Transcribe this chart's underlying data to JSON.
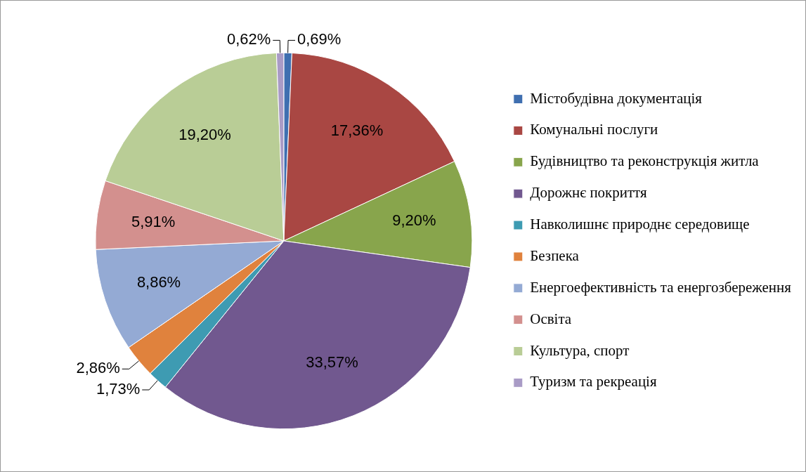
{
  "chart_data": {
    "type": "pie",
    "categories": [
      "Містобудівна документація",
      "Комунальні послуги",
      "Будівництво та реконструкція житла",
      "Дорожнє покриття",
      "Навколишнє природнє середовище",
      "Безпека",
      "Енергоефективність та енергозбереження",
      "Освіта",
      "Культура, спорт",
      "Туризм та рекреація"
    ],
    "values": [
      0.69,
      17.36,
      9.2,
      33.57,
      1.73,
      2.86,
      8.86,
      5.91,
      19.2,
      0.62
    ],
    "value_labels": [
      "0,69%",
      "17,36%",
      "9,20%",
      "33,57%",
      "1,73%",
      "2,86%",
      "8,86%",
      "5,91%",
      "19,20%",
      "0,62%"
    ],
    "colors": [
      "#3f6fb0",
      "#a94743",
      "#88a54c",
      "#71588f",
      "#3e9bb2",
      "#e0823d",
      "#94aad4",
      "#d3908e",
      "#b9cd96",
      "#a99bc6"
    ],
    "legend": "right"
  }
}
